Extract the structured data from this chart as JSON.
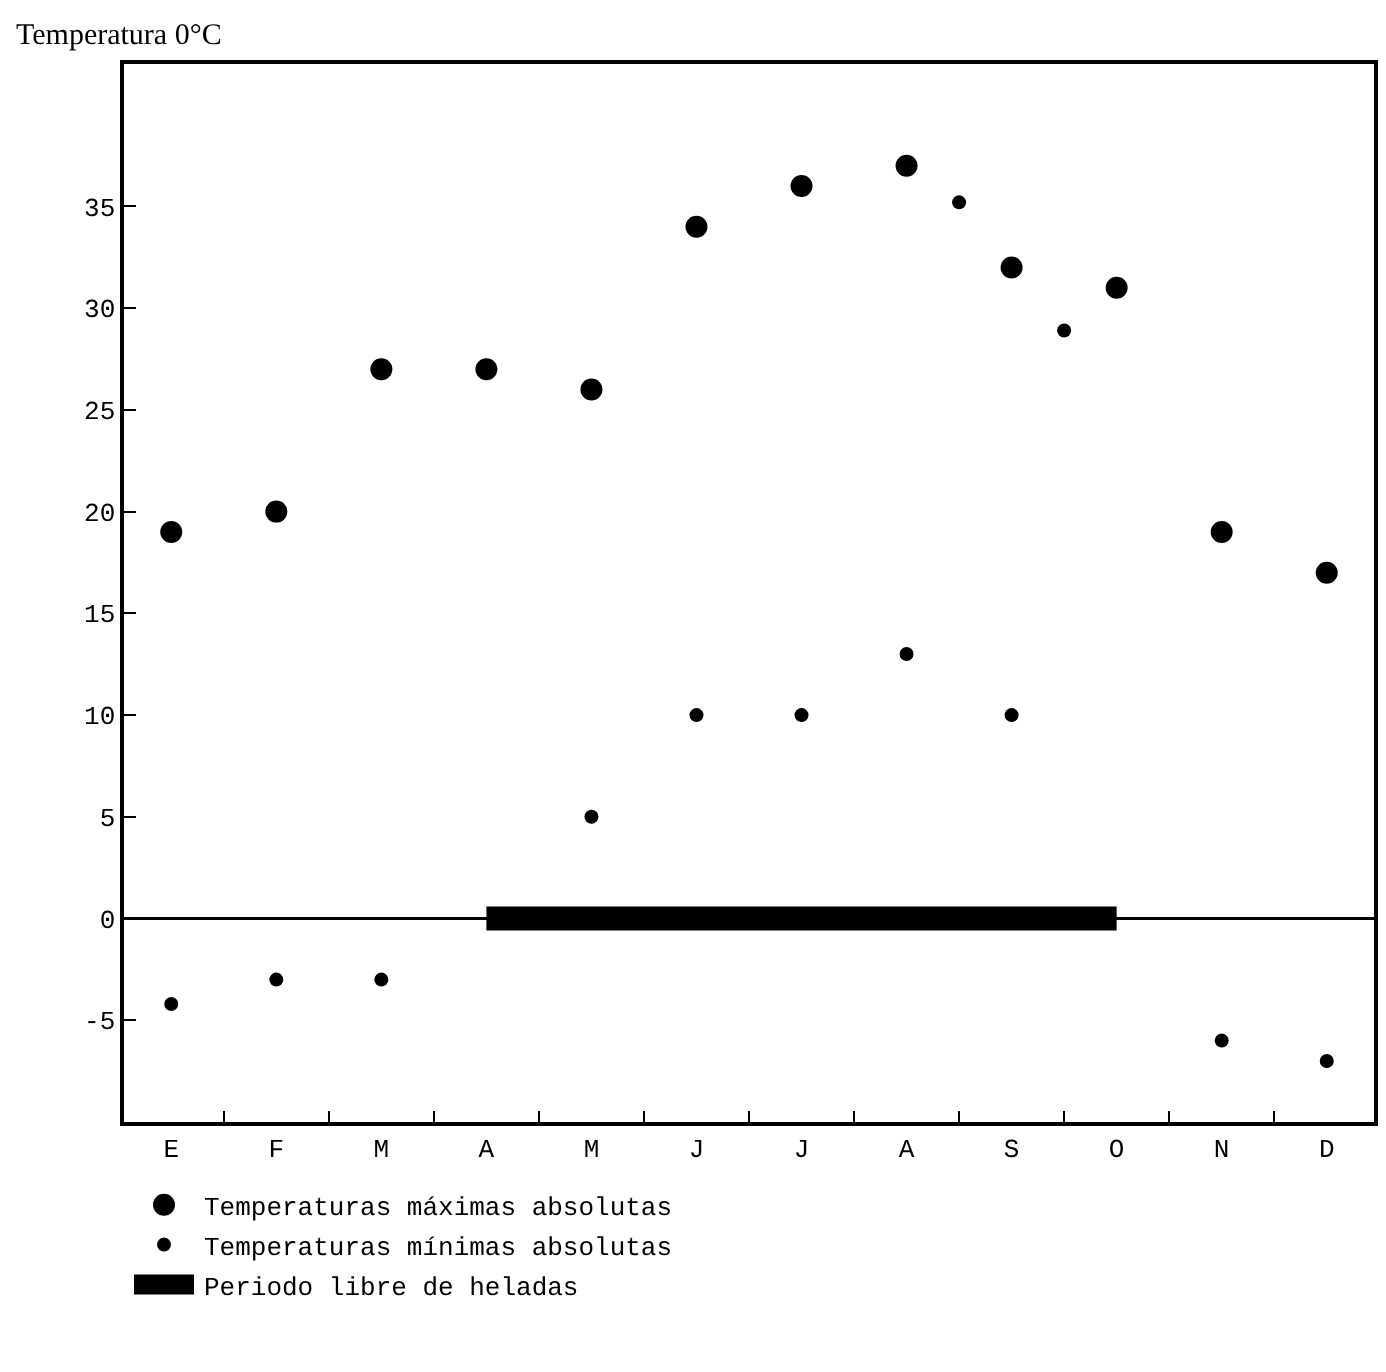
{
  "chart_data": {
    "type": "scatter",
    "ylabel": "Temperatura 0°C",
    "categories": [
      "E",
      null,
      "F",
      null,
      "M",
      null,
      "A",
      null,
      "M",
      null,
      "J",
      null,
      "J",
      null,
      "A",
      null,
      "S",
      null,
      "O",
      null,
      "N",
      null,
      "D"
    ],
    "ylim": [
      -10,
      42
    ],
    "yticks": [
      -5,
      0,
      5,
      10,
      15,
      20,
      25,
      30,
      35
    ],
    "marker": "circle",
    "grid": false,
    "legend": "bottom",
    "ref_lines": [
      {
        "axis": "y",
        "value": 0,
        "label": null,
        "color": "#000000"
      }
    ],
    "series": [
      {
        "name": "Temperaturas máximas absolutas",
        "color": "#000000",
        "values": [
          19,
          null,
          20,
          null,
          27,
          null,
          27,
          null,
          26,
          null,
          34,
          null,
          36,
          null,
          37,
          null,
          32,
          null,
          31,
          null,
          19,
          null,
          17
        ]
      },
      {
        "name": "Temperaturas mínimas absolutas",
        "color": "#000000",
        "values": [
          -4.2,
          null,
          -3,
          null,
          -3,
          null,
          null,
          null,
          5,
          null,
          10,
          null,
          10,
          null,
          13,
          35.2,
          10,
          28.9,
          null,
          null,
          -6,
          null,
          -7
        ]
      },
      {
        "name": "Periodo libre de heladas",
        "type": "line",
        "marker": "none",
        "color": "#000000",
        "values": [
          null,
          null,
          null,
          null,
          null,
          null,
          0,
          0,
          0,
          0,
          0,
          0,
          0,
          0,
          0,
          0,
          0,
          0,
          0,
          null,
          null,
          null,
          null
        ]
      }
    ]
  }
}
